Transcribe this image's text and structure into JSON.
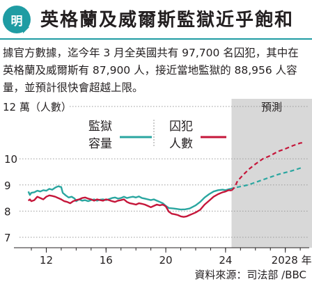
{
  "header": {
    "badge_text": "明",
    "title": "英格蘭及威爾斯監獄近乎飽和"
  },
  "description": "據官方數據，迄今年 3 月全英國共有 97,700 名囚犯，其中在英格蘭及威爾斯有 87,900 人，接近當地監獄的 88,956 人容量，並預計很快會超越上限。",
  "source": "資料來源：司法部 /BBC",
  "colors": {
    "accent": "#1f9ca3",
    "capacity": "#2aa6a0",
    "prisoners": "#c5163a",
    "forecast_bg": "#d8d8d8"
  },
  "chart_data": {
    "type": "line",
    "unit_label": "12 萬（人數）",
    "forecast_label": "預測",
    "y_ticks": [
      7,
      8,
      9,
      10
    ],
    "ylim": [
      7,
      12
    ],
    "x_ticks": [
      {
        "value": 2012,
        "label": "12"
      },
      {
        "value": 2016,
        "label": "16"
      },
      {
        "value": 2020,
        "label": "20"
      },
      {
        "value": 2024,
        "label": "24"
      },
      {
        "value": 2028,
        "label": "2028 年"
      }
    ],
    "xlim": [
      2010.3,
      2029.6
    ],
    "forecast_start": 2024.4,
    "series": [
      {
        "name": "監獄容量",
        "name_lines": [
          "監獄",
          "容量"
        ],
        "color": "#2aa6a0",
        "points": [
          [
            2010.8,
            8.75
          ],
          [
            2010.9,
            8.62
          ],
          [
            2011.0,
            8.7
          ],
          [
            2011.2,
            8.72
          ],
          [
            2011.4,
            8.78
          ],
          [
            2011.6,
            8.75
          ],
          [
            2011.8,
            8.8
          ],
          [
            2012.0,
            8.78
          ],
          [
            2012.2,
            8.85
          ],
          [
            2012.4,
            8.82
          ],
          [
            2012.6,
            8.9
          ],
          [
            2012.8,
            8.95
          ],
          [
            2013.0,
            8.92
          ],
          [
            2013.1,
            8.7
          ],
          [
            2013.3,
            8.6
          ],
          [
            2013.5,
            8.52
          ],
          [
            2013.7,
            8.55
          ],
          [
            2013.9,
            8.48
          ],
          [
            2014.0,
            8.38
          ],
          [
            2014.2,
            8.45
          ],
          [
            2014.4,
            8.4
          ],
          [
            2014.6,
            8.42
          ],
          [
            2014.8,
            8.38
          ],
          [
            2015.0,
            8.42
          ],
          [
            2015.2,
            8.45
          ],
          [
            2015.4,
            8.4
          ],
          [
            2015.6,
            8.44
          ],
          [
            2015.8,
            8.45
          ],
          [
            2016.0,
            8.42
          ],
          [
            2016.2,
            8.46
          ],
          [
            2016.4,
            8.5
          ],
          [
            2016.6,
            8.52
          ],
          [
            2016.8,
            8.48
          ],
          [
            2017.0,
            8.5
          ],
          [
            2017.2,
            8.55
          ],
          [
            2017.4,
            8.5
          ],
          [
            2017.6,
            8.53
          ],
          [
            2017.8,
            8.55
          ],
          [
            2018.0,
            8.52
          ],
          [
            2018.2,
            8.56
          ],
          [
            2018.4,
            8.5
          ],
          [
            2018.6,
            8.48
          ],
          [
            2018.8,
            8.45
          ],
          [
            2019.0,
            8.42
          ],
          [
            2019.2,
            8.45
          ],
          [
            2019.4,
            8.4
          ],
          [
            2019.6,
            8.35
          ],
          [
            2019.8,
            8.3
          ],
          [
            2020.0,
            8.2
          ],
          [
            2020.2,
            8.12
          ],
          [
            2020.5,
            8.1
          ],
          [
            2020.8,
            8.08
          ],
          [
            2021.0,
            8.06
          ],
          [
            2021.3,
            8.07
          ],
          [
            2021.6,
            8.1
          ],
          [
            2022.0,
            8.22
          ],
          [
            2022.3,
            8.35
          ],
          [
            2022.6,
            8.52
          ],
          [
            2022.9,
            8.65
          ],
          [
            2023.2,
            8.75
          ],
          [
            2023.5,
            8.8
          ],
          [
            2023.8,
            8.82
          ],
          [
            2024.0,
            8.8
          ],
          [
            2024.3,
            8.85
          ],
          [
            2024.5,
            8.88
          ],
          [
            2025.5,
            9.0
          ],
          [
            2026.5,
            9.2
          ],
          [
            2027.5,
            9.4
          ],
          [
            2028.5,
            9.55
          ],
          [
            2029.2,
            9.68
          ]
        ]
      },
      {
        "name": "囚犯人數",
        "name_lines": [
          "囚犯",
          "人數"
        ],
        "color": "#c5163a",
        "points": [
          [
            2010.8,
            8.4
          ],
          [
            2010.9,
            8.45
          ],
          [
            2011.0,
            8.38
          ],
          [
            2011.2,
            8.42
          ],
          [
            2011.4,
            8.55
          ],
          [
            2011.6,
            8.5
          ],
          [
            2011.8,
            8.45
          ],
          [
            2012.0,
            8.55
          ],
          [
            2012.2,
            8.6
          ],
          [
            2012.4,
            8.58
          ],
          [
            2012.6,
            8.55
          ],
          [
            2012.8,
            8.5
          ],
          [
            2013.0,
            8.45
          ],
          [
            2013.2,
            8.38
          ],
          [
            2013.4,
            8.35
          ],
          [
            2013.6,
            8.3
          ],
          [
            2013.8,
            8.38
          ],
          [
            2014.0,
            8.42
          ],
          [
            2014.2,
            8.45
          ],
          [
            2014.4,
            8.5
          ],
          [
            2014.6,
            8.52
          ],
          [
            2014.8,
            8.48
          ],
          [
            2015.0,
            8.45
          ],
          [
            2015.2,
            8.4
          ],
          [
            2015.4,
            8.45
          ],
          [
            2015.6,
            8.42
          ],
          [
            2015.8,
            8.4
          ],
          [
            2016.0,
            8.45
          ],
          [
            2016.2,
            8.42
          ],
          [
            2016.4,
            8.38
          ],
          [
            2016.6,
            8.35
          ],
          [
            2016.8,
            8.4
          ],
          [
            2017.0,
            8.42
          ],
          [
            2017.2,
            8.45
          ],
          [
            2017.4,
            8.35
          ],
          [
            2017.6,
            8.3
          ],
          [
            2017.8,
            8.28
          ],
          [
            2018.0,
            8.25
          ],
          [
            2018.2,
            8.3
          ],
          [
            2018.4,
            8.28
          ],
          [
            2018.6,
            8.25
          ],
          [
            2018.8,
            8.2
          ],
          [
            2019.0,
            8.15
          ],
          [
            2019.2,
            8.2
          ],
          [
            2019.4,
            8.25
          ],
          [
            2019.6,
            8.22
          ],
          [
            2019.8,
            8.25
          ],
          [
            2020.0,
            8.18
          ],
          [
            2020.2,
            7.98
          ],
          [
            2020.4,
            7.9
          ],
          [
            2020.6,
            7.88
          ],
          [
            2020.8,
            7.85
          ],
          [
            2021.0,
            7.8
          ],
          [
            2021.2,
            7.78
          ],
          [
            2021.4,
            7.8
          ],
          [
            2021.6,
            7.85
          ],
          [
            2021.8,
            7.9
          ],
          [
            2022.0,
            7.95
          ],
          [
            2022.3,
            8.05
          ],
          [
            2022.6,
            8.25
          ],
          [
            2022.9,
            8.4
          ],
          [
            2023.2,
            8.55
          ],
          [
            2023.5,
            8.65
          ],
          [
            2023.8,
            8.72
          ],
          [
            2024.0,
            8.75
          ],
          [
            2024.2,
            8.8
          ],
          [
            2024.4,
            8.79
          ],
          [
            2024.6,
            8.9
          ],
          [
            2024.8,
            9.15
          ],
          [
            2025.2,
            9.4
          ],
          [
            2025.6,
            9.62
          ],
          [
            2026.0,
            9.8
          ],
          [
            2026.5,
            10.0
          ],
          [
            2027.0,
            10.12
          ],
          [
            2027.5,
            10.28
          ],
          [
            2028.0,
            10.38
          ],
          [
            2028.5,
            10.5
          ],
          [
            2029.0,
            10.6
          ],
          [
            2029.2,
            10.62
          ]
        ]
      }
    ]
  }
}
